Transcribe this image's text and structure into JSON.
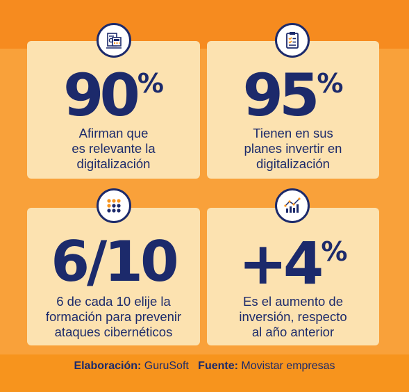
{
  "stats": [
    {
      "value": "90",
      "suffix": "%",
      "icon": "report-icon",
      "lines": [
        "Afirman que",
        "es relevante la",
        "digitalización"
      ]
    },
    {
      "value": "95",
      "suffix": "%",
      "icon": "checklist-icon",
      "lines": [
        "Tienen en sus",
        "planes invertir en",
        "digitalización"
      ]
    },
    {
      "value": "6/10",
      "suffix": "",
      "icon": "dots-grid-icon",
      "lines": [
        "6 de cada 10 elije la",
        "formación para prevenir",
        "ataques cibernéticos"
      ]
    },
    {
      "value": "+4",
      "suffix": "%",
      "icon": "growth-chart-icon",
      "lines": [
        "Es el aumento de",
        "inversión, respecto",
        "al año anterior"
      ]
    }
  ],
  "footer": {
    "elaboracion_label": "Elaboración:",
    "elaboracion_value": "GuruSoft",
    "fuente_label": "Fuente:",
    "fuente_value": "Movistar empresas"
  },
  "colors": {
    "background": "#F7941D",
    "card": "#FCE2B0",
    "navy": "#1C2A6B",
    "accent_orange": "#F7941D"
  }
}
